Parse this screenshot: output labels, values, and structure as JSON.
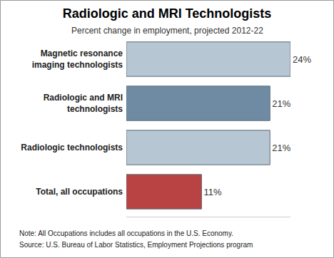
{
  "chart_data": {
    "type": "bar",
    "orientation": "horizontal",
    "title": "Radiologic and MRI Technologists",
    "subtitle": "Percent change in employment, projected 2012-22",
    "categories": [
      "Magnetic resonance imaging technologists",
      "Radiologic and MRI technologists",
      "Radiologic technologists",
      "Total, all occupations"
    ],
    "values": [
      24,
      21,
      21,
      11
    ],
    "value_labels": [
      "24%",
      "21%",
      "21%",
      "11%"
    ],
    "data_labels": true,
    "colors": [
      "#b7c6d3",
      "#6f8ba4",
      "#b7c6d3",
      "#b94343"
    ],
    "xlim": [
      0,
      24
    ],
    "xticks": [],
    "tick_labels": "y",
    "grid": false,
    "annotations": [
      "Note: All Occupations includes all occupations in the U.S. Economy.",
      "Source: U.S. Bureau of Labor Statistics, Employment Projections program"
    ]
  }
}
